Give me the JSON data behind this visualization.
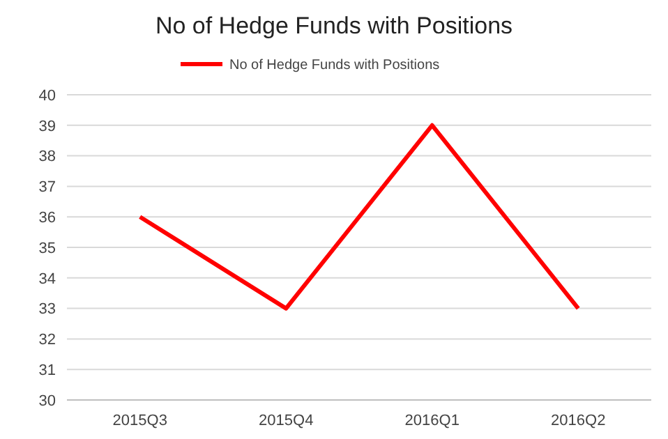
{
  "chart_data": {
    "type": "line",
    "title": "No of Hedge Funds with Positions",
    "categories": [
      "2015Q3",
      "2015Q4",
      "2016Q1",
      "2016Q2"
    ],
    "series": [
      {
        "name": "No of Hedge Funds with Positions",
        "color": "#ff0000",
        "values": [
          36,
          33,
          39,
          33
        ]
      }
    ],
    "ylim": [
      30,
      40
    ],
    "yticks": [
      30,
      31,
      32,
      33,
      34,
      35,
      36,
      37,
      38,
      39,
      40
    ],
    "grid": "y",
    "legend": "top",
    "marker": "none",
    "line_style": "solid"
  }
}
